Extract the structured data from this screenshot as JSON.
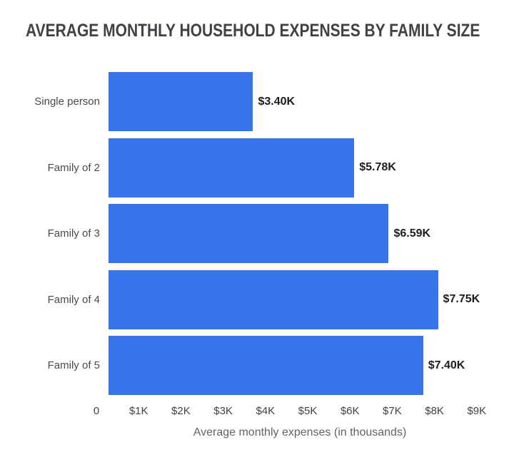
{
  "title": "AVERAGE MONTHLY HOUSEHOLD EXPENSES BY FAMILY SIZE",
  "chart_data": {
    "type": "bar",
    "orientation": "horizontal",
    "title": "AVERAGE MONTHLY HOUSEHOLD EXPENSES BY FAMILY SIZE",
    "categories": [
      "Single person",
      "Family of 2",
      "Family of 3",
      "Family of 4",
      "Family of 5"
    ],
    "values": [
      3.4,
      5.78,
      6.59,
      7.75,
      7.4
    ],
    "value_labels": [
      "$3.40K",
      "$5.78K",
      "$6.59K",
      "$7.75K",
      "$7.40K"
    ],
    "xlabel": "Average monthly expenses (in thousands)",
    "ylabel": "",
    "x_ticks": [
      "0",
      "$1K",
      "$2K",
      "$3K",
      "$4K",
      "$5K",
      "$6K",
      "$7K",
      "$8K",
      "$9K"
    ],
    "x_tick_values": [
      0,
      1,
      2,
      3,
      4,
      5,
      6,
      7,
      8,
      9
    ],
    "xlim": [
      0,
      9
    ],
    "grid": false,
    "legend": false,
    "bar_color": "#3574eb",
    "background_color": "#ffffff"
  },
  "colors": {
    "bar": "#3574eb",
    "title_text": "#3f4245",
    "category_text": "#4a4a4a",
    "value_text": "#1d1d1d",
    "tick_text": "#424242",
    "axis_label_text": "#5f6368"
  }
}
